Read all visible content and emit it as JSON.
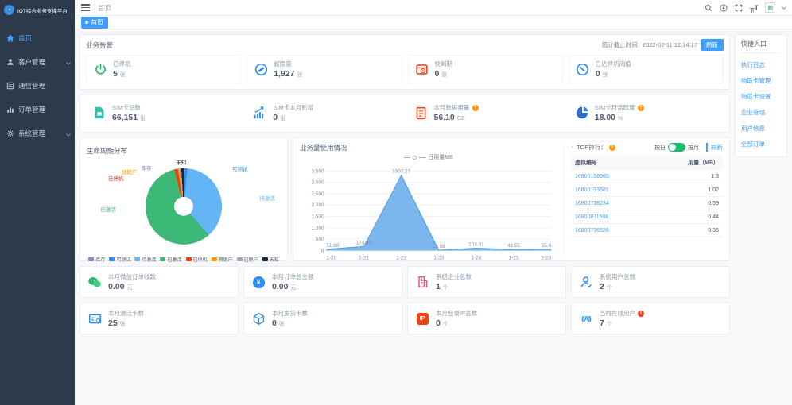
{
  "app": {
    "logo_text": "IOT综合业务支撑平台"
  },
  "sidebar": {
    "items": [
      {
        "label": "首页"
      },
      {
        "label": "客户管理"
      },
      {
        "label": "通信管理"
      },
      {
        "label": "订单管理"
      },
      {
        "label": "系统管理"
      }
    ]
  },
  "topbar": {
    "breadcrumb": "首页",
    "font_icon_text": "╥T"
  },
  "tabs": {
    "active_label": "首页"
  },
  "alerts": {
    "title": "业务告警",
    "stats_time_label": "统计截止时间:",
    "stats_time": "2022-02-11 12:14:17",
    "refresh_button": "刷新",
    "items": [
      {
        "label": "已停机",
        "value": "5",
        "unit": "张"
      },
      {
        "label": "超限量",
        "value": "1,927",
        "unit": "张"
      },
      {
        "label": "快到期",
        "value": "0",
        "unit": "张"
      },
      {
        "label": "已达停机阈值",
        "value": "0",
        "unit": "张"
      }
    ]
  },
  "sim_stats": {
    "items": [
      {
        "label": "SIM卡总数",
        "value": "66,151",
        "unit": "张"
      },
      {
        "label": "SIM卡本月新增",
        "value": "0",
        "unit": "张"
      },
      {
        "label": "本月数据用量",
        "value": "56.10",
        "unit": "GB"
      },
      {
        "label": "SIM卡月活跃度",
        "value": "18.00",
        "unit": "%"
      }
    ]
  },
  "top_rank": {
    "title": "TOP排行：",
    "toggle_left": "按日",
    "toggle_right": "按月",
    "refresh": "刷新",
    "columns": [
      "虚拟编号",
      "用量（MB）"
    ],
    "rows": [
      [
        "16800158685",
        "1.3"
      ],
      [
        "16800193681",
        "1.02"
      ],
      [
        "16800738234",
        "0.59"
      ],
      [
        "16800811508",
        "0.44"
      ],
      [
        "16800736526",
        "0.36"
      ]
    ]
  },
  "metrics_row1": [
    {
      "label": "本月微信订单收款",
      "value": "0.00",
      "unit": "元"
    },
    {
      "label": "本月订单总金额",
      "value": "0.00",
      "unit": "元"
    },
    {
      "label": "系统企业总数",
      "value": "1",
      "unit": "个"
    },
    {
      "label": "系统用户总数",
      "value": "2",
      "unit": "个"
    }
  ],
  "metrics_row2": [
    {
      "label": "本月激活卡数",
      "value": "25",
      "unit": "张"
    },
    {
      "label": "本月发货卡数",
      "value": "0",
      "unit": "张"
    },
    {
      "label": "本月登录IP总数",
      "value": "0",
      "unit": "个"
    },
    {
      "label": "当前在线用户",
      "value": "7",
      "unit": "个"
    }
  ],
  "quick_entry": {
    "title": "快捷入口",
    "links": [
      "执行日志",
      "物联卡管理",
      "物联卡设置",
      "企业管理",
      "用户信息",
      "全部订单"
    ]
  },
  "chart_data": [
    {
      "type": "pie",
      "title": "生命周期分布",
      "labels": [
        "库存",
        "可测试",
        "待激活",
        "已激活",
        "已停机",
        "预销户",
        "已销户",
        "未知"
      ],
      "values": [
        0.5,
        1.0,
        37.0,
        57.5,
        1.5,
        0.7,
        0.8,
        1.0
      ],
      "colors": [
        "#9a7fd1",
        "#2d8cf0",
        "#64b5f6",
        "#3cb877",
        "#ed4014",
        "#ff9900",
        "#9ea7b4",
        "#17233d"
      ],
      "legend_position": "bottom",
      "hole": true
    },
    {
      "type": "area",
      "title": "业务量使用情况",
      "series_name": "日用量MB",
      "x": [
        "1-20",
        "1-21",
        "1-22",
        "1-23",
        "1-24",
        "1-25",
        "1-26"
      ],
      "values": [
        51.88,
        174.45,
        3307.27,
        13.98,
        103.81,
        41.55,
        55.6
      ],
      "ylim": [
        0,
        3500
      ],
      "yticks": [
        0,
        500,
        1000,
        1500,
        2000,
        2500,
        3000,
        3500
      ],
      "fill_color": "#74b2ee",
      "line_color": "#4f9de4",
      "grid": true,
      "legend_position": "top"
    }
  ],
  "colors": {
    "accent": "#409eff",
    "success": "#19be6b",
    "danger": "#ed4014",
    "warning": "#ff9900"
  }
}
